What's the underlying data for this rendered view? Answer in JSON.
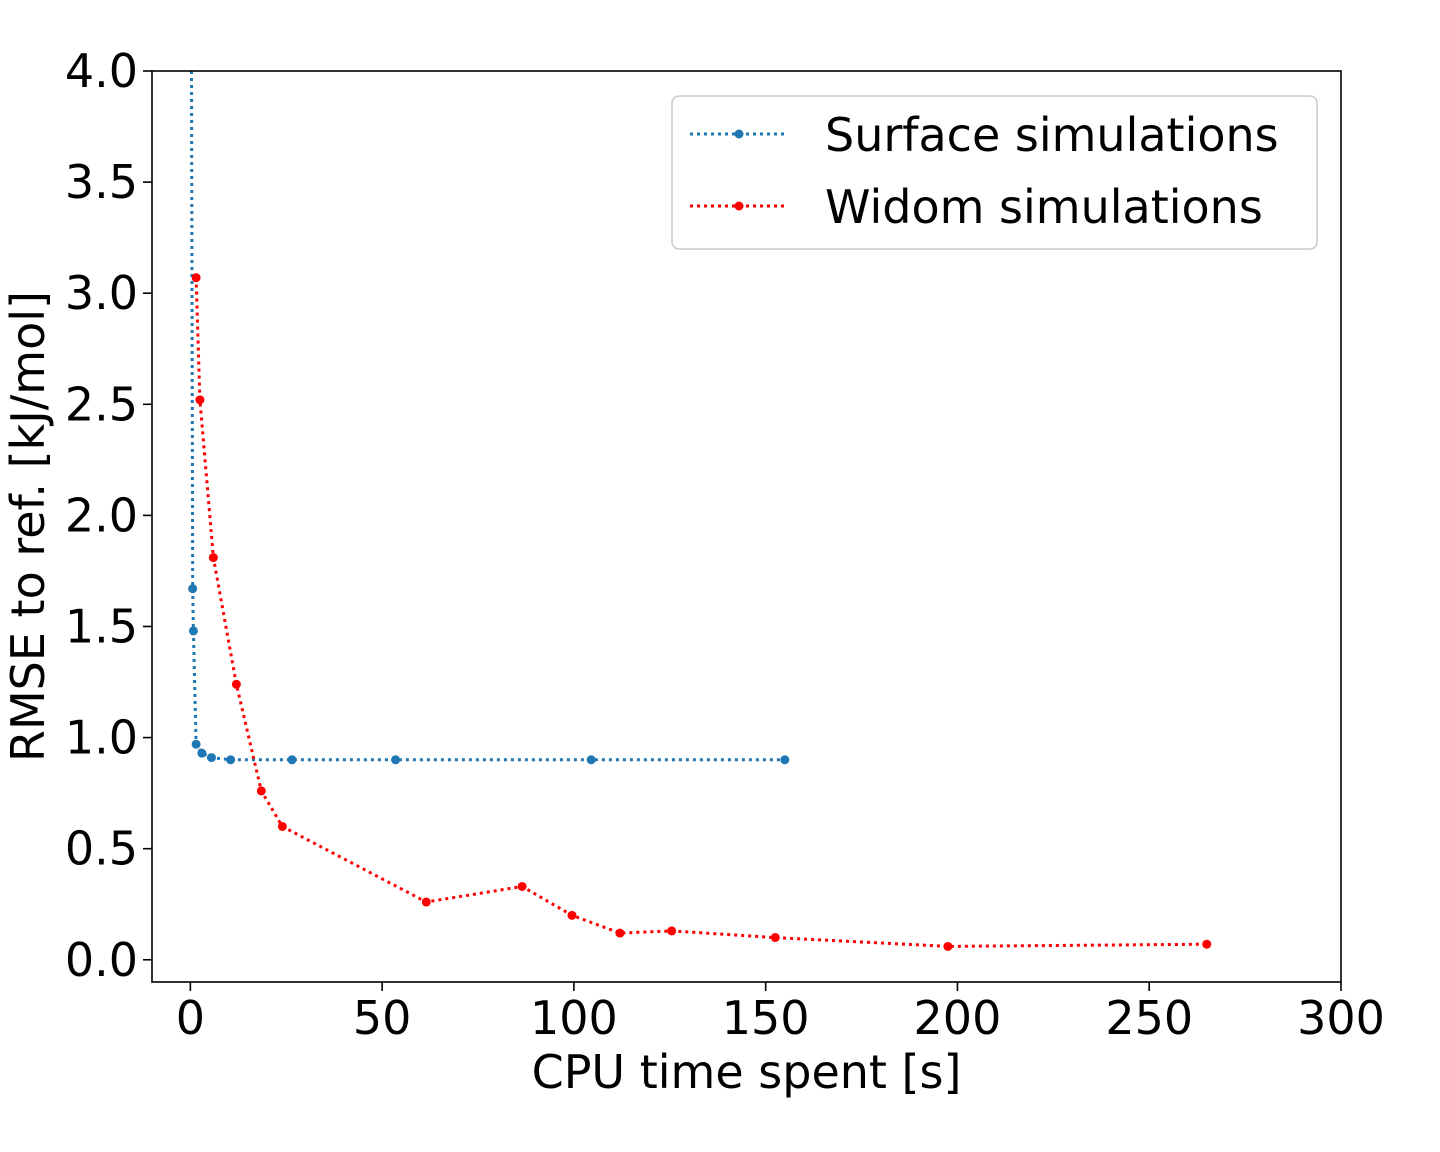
{
  "chart_data": {
    "type": "line",
    "title": "",
    "xlabel": "CPU time spent [s]",
    "ylabel": "RMSE to ref. [kJ/mol]",
    "xlim": [
      -10,
      300
    ],
    "ylim": [
      -0.1,
      4.0
    ],
    "xticks": [
      0,
      50,
      100,
      150,
      200,
      250,
      300
    ],
    "yticks": [
      0.0,
      0.5,
      1.0,
      1.5,
      2.0,
      2.5,
      3.0,
      3.5,
      4.0
    ],
    "xtick_labels": [
      "0",
      "50",
      "100",
      "150",
      "200",
      "250",
      "300"
    ],
    "ytick_labels": [
      "0.0",
      "0.5",
      "1.0",
      "1.5",
      "2.0",
      "2.5",
      "3.0",
      "3.5",
      "4.0"
    ],
    "grid": false,
    "legend_position": "top-right",
    "series": [
      {
        "name": "Surface simulations",
        "color": "#1f77b4",
        "line_style": "dotted",
        "marker": "circle",
        "x": [
          0.3,
          0.6,
          0.8,
          1.5,
          3,
          5.5,
          10.5,
          26.5,
          53.5,
          104.5,
          155
        ],
        "y": [
          4.0,
          1.67,
          1.48,
          0.97,
          0.93,
          0.91,
          0.9,
          0.9,
          0.9,
          0.9,
          0.9
        ]
      },
      {
        "name": "Widom simulations",
        "color": "#ff0000",
        "line_style": "dotted",
        "marker": "circle",
        "x": [
          1.5,
          2.5,
          6,
          12,
          18.5,
          24,
          61.5,
          86.5,
          99.5,
          112,
          125.5,
          152.5,
          197.5,
          265
        ],
        "y": [
          3.07,
          2.52,
          1.81,
          1.24,
          0.76,
          0.6,
          0.26,
          0.33,
          0.2,
          0.12,
          0.13,
          0.1,
          0.06,
          0.07
        ]
      }
    ]
  }
}
